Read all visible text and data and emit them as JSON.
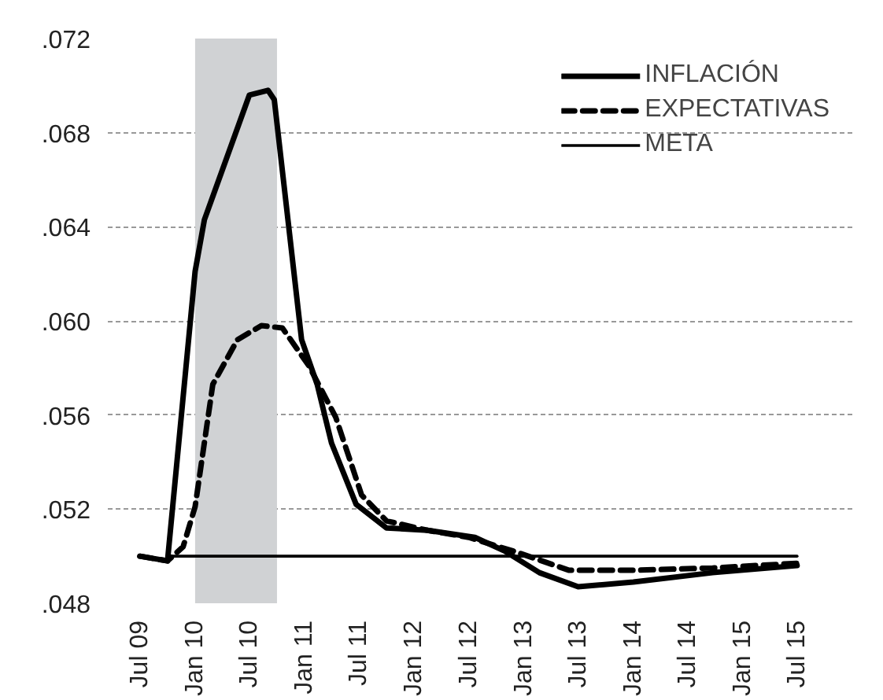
{
  "chart_data": {
    "type": "line",
    "xlim": [
      "2009-03-16",
      "2016-01-01"
    ],
    "ylim": [
      0.048,
      0.072
    ],
    "xticks": [
      {
        "value": "2009-07",
        "label": "Jul 09"
      },
      {
        "value": "2010-01",
        "label": "Jan 10"
      },
      {
        "value": "2010-07",
        "label": "Jul 10"
      },
      {
        "value": "2011-01",
        "label": "Jan 11"
      },
      {
        "value": "2011-07",
        "label": "Jul 11"
      },
      {
        "value": "2012-01",
        "label": "Jan 12"
      },
      {
        "value": "2012-07",
        "label": "Jul 12"
      },
      {
        "value": "2013-01",
        "label": "Jan 13"
      },
      {
        "value": "2013-07",
        "label": "Jul 13"
      },
      {
        "value": "2014-01",
        "label": "Jan 14"
      },
      {
        "value": "2014-07",
        "label": "Jul 14"
      },
      {
        "value": "2015-01",
        "label": "Jan 15"
      },
      {
        "value": "2015-07",
        "label": "Jul 15"
      }
    ],
    "yticks": [
      {
        "value": 0.048,
        "label": ".048"
      },
      {
        "value": 0.052,
        "label": ".052"
      },
      {
        "value": 0.056,
        "label": ".056"
      },
      {
        "value": 0.06,
        "label": ".060"
      },
      {
        "value": 0.064,
        "label": ".064"
      },
      {
        "value": 0.068,
        "label": ".068"
      },
      {
        "value": 0.072,
        "label": ".072"
      }
    ],
    "grid": "y",
    "legend": "top right",
    "bands": [
      {
        "axis": "x",
        "from": "2010-01-01",
        "to": "2010-10-01",
        "color": "#d0d2d4"
      }
    ],
    "series": [
      {
        "name": "INFLACIÓN",
        "color": "#000000",
        "line_style": "solid",
        "x": [
          "2009-07-01",
          "2009-10-01",
          "2010-01-01",
          "2010-02-01",
          "2010-07-01",
          "2010-09-01",
          "2010-09-22",
          "2010-12-22",
          "2011-02-12",
          "2011-04-01",
          "2011-06-22",
          "2011-10-01",
          "2012-02-15",
          "2012-07-22",
          "2012-11-01",
          "2013-02-22",
          "2013-07-01",
          "2014-01-01",
          "2014-09-22",
          "2015-07-01"
        ],
        "values": [
          0.05,
          0.0498,
          0.0621,
          0.0643,
          0.0696,
          0.0698,
          0.0694,
          0.0592,
          0.0573,
          0.0548,
          0.0522,
          0.0512,
          0.0511,
          0.0508,
          0.0502,
          0.0493,
          0.0487,
          0.0489,
          0.0493,
          0.0496
        ]
      },
      {
        "name": "EXPECTATIVAS",
        "color": "#000000",
        "line_style": "dashed",
        "x": [
          "2009-07-01",
          "2009-10-01",
          "2009-11-22",
          "2010-01-01",
          "2010-03-01",
          "2010-05-22",
          "2010-08-10",
          "2010-10-19",
          "2011-01-15",
          "2011-04-15",
          "2011-07-10",
          "2011-10-01",
          "2012-02-15",
          "2012-07-01",
          "2012-12-01",
          "2013-06-01",
          "2014-01-01",
          "2014-09-22",
          "2015-07-01"
        ],
        "values": [
          0.05,
          0.0498,
          0.0504,
          0.0521,
          0.0573,
          0.0592,
          0.0598,
          0.0597,
          0.0581,
          0.0559,
          0.0526,
          0.0515,
          0.0511,
          0.0508,
          0.0502,
          0.0494,
          0.0494,
          0.0495,
          0.0497
        ]
      },
      {
        "name": "META",
        "color": "#000000",
        "line_style": "solid",
        "x": [
          "2009-10-01",
          "2015-07-01"
        ],
        "values": [
          0.05,
          0.05
        ]
      }
    ]
  }
}
